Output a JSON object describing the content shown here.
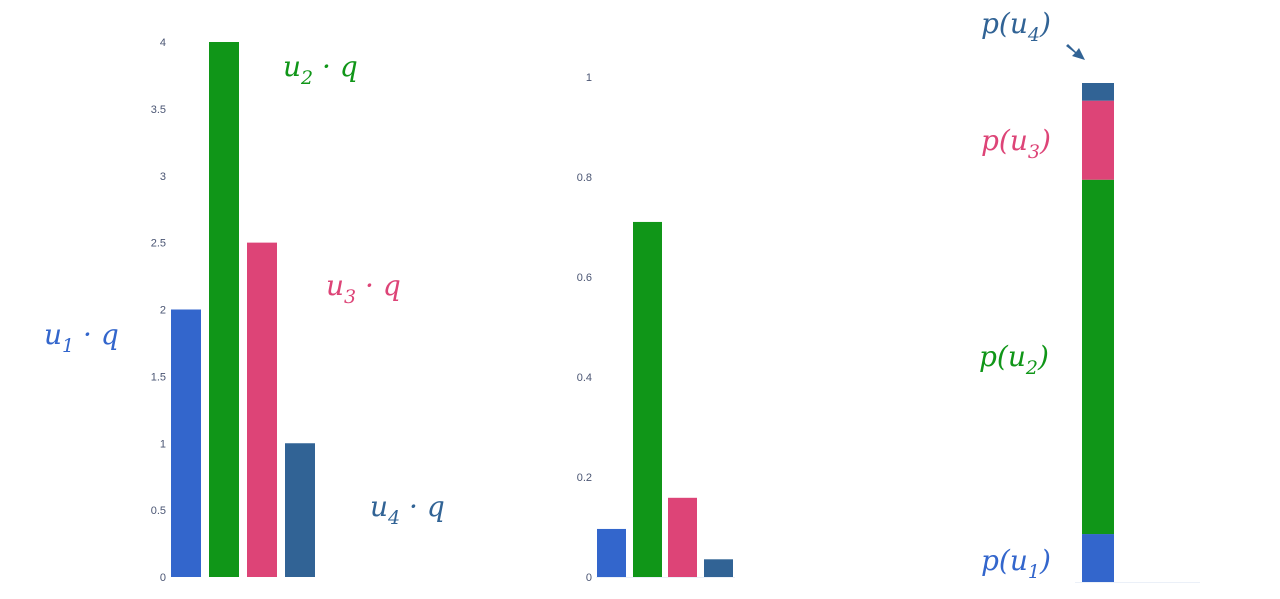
{
  "colors": {
    "u1": "#3366cc",
    "u2": "#109618",
    "u3": "#dd4477",
    "u4": "#316395"
  },
  "chart_data": [
    {
      "type": "bar",
      "categories": [
        "u1",
        "u2",
        "u3",
        "u4"
      ],
      "values": [
        2,
        4,
        2.5,
        1
      ],
      "ylim": [
        0,
        4
      ],
      "yticks": [
        "0",
        "0.5",
        "1",
        "1.5",
        "2",
        "2.5",
        "3",
        "3.5",
        "4"
      ],
      "annotations": [
        {
          "base": "u",
          "sub": "1",
          "rest": " · q"
        },
        {
          "base": "u",
          "sub": "2",
          "rest": " · q"
        },
        {
          "base": "u",
          "sub": "3",
          "rest": " · q"
        },
        {
          "base": "u",
          "sub": "4",
          "rest": " · q"
        }
      ]
    },
    {
      "type": "bar",
      "categories": [
        "u1",
        "u2",
        "u3",
        "u4"
      ],
      "values": [
        0.0961,
        0.7101,
        0.1584,
        0.0354
      ],
      "ylim": [
        0,
        1
      ],
      "yticks": [
        "0",
        "0.2",
        "0.4",
        "0.6",
        "0.8",
        "1"
      ]
    },
    {
      "type": "bar",
      "stacked": true,
      "categories": [
        "u1",
        "u2",
        "u3",
        "u4"
      ],
      "values": [
        0.0961,
        0.7101,
        0.1584,
        0.0354
      ],
      "ylim": [
        0,
        1
      ],
      "annotations": [
        {
          "base": "p(u",
          "sub": "1",
          "rest": ")"
        },
        {
          "base": "p(u",
          "sub": "2",
          "rest": ")"
        },
        {
          "base": "p(u",
          "sub": "3",
          "rest": ")"
        },
        {
          "base": "p(u",
          "sub": "4",
          "rest": ")"
        }
      ]
    }
  ]
}
